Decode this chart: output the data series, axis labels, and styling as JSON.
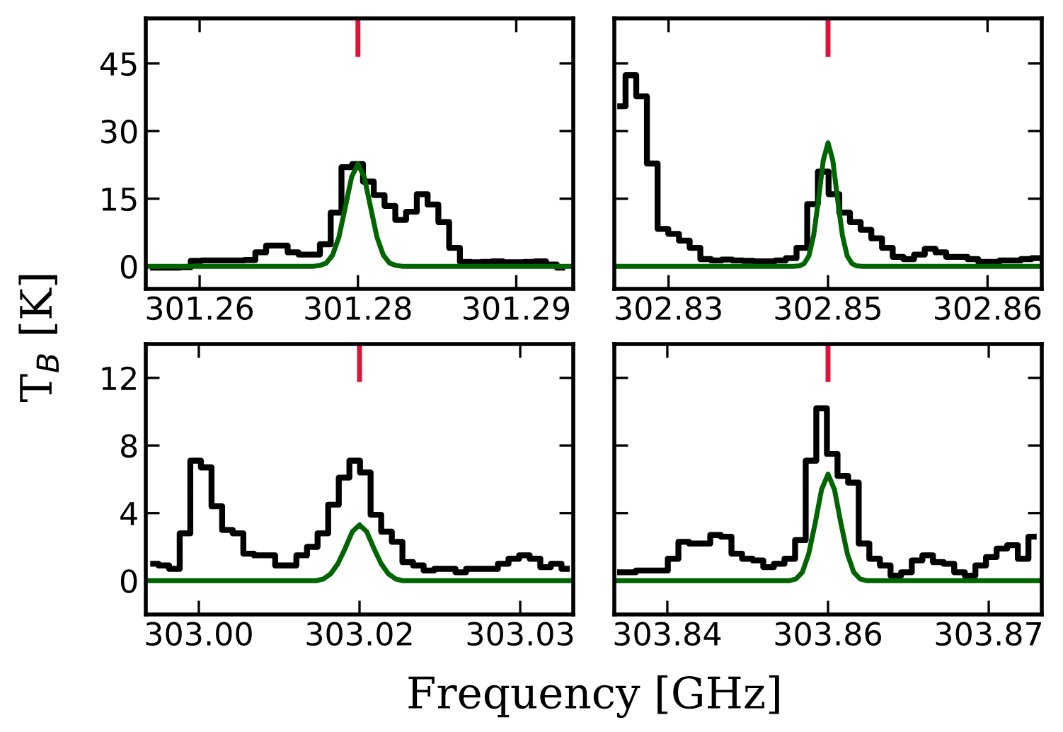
{
  "chart_data": [
    {
      "type": "step",
      "ylabel": "T$_{B}$ [K]",
      "xlim": [
        301.2616,
        301.2886
      ],
      "ylim": [
        -5,
        55
      ],
      "xticks": [
        {
          "value": 301.265,
          "label": "301.26"
        },
        {
          "value": 301.275,
          "label": "301.28"
        },
        {
          "value": 301.285,
          "label": "301.29"
        }
      ],
      "yticks": [
        0,
        15,
        30,
        45
      ],
      "grid": false,
      "legend": false,
      "series": [
        {
          "color": "#000000",
          "x": [
            301.26206,
            301.26274,
            301.26342,
            301.2641,
            301.26478,
            301.26546,
            301.26614,
            301.26682,
            301.2675,
            301.26818,
            301.26886,
            301.26954,
            301.27022,
            301.2709,
            301.27158,
            301.27226,
            301.27294,
            301.27362,
            301.2743,
            301.27498,
            301.27566,
            301.27634,
            301.27702,
            301.2777,
            301.27838,
            301.27906,
            301.27974,
            301.28042,
            301.2811,
            301.28178,
            301.28246,
            301.28314,
            301.28382,
            301.2845,
            301.28518,
            301.28586,
            301.28654,
            301.28722,
            301.2879
          ],
          "values": [
            -0.3,
            -0.3,
            -0.3,
            -0.2,
            1.2,
            1.3,
            1.3,
            1.3,
            1.3,
            1.4,
            3.1,
            4.6,
            4.6,
            3.1,
            2.6,
            2.6,
            4.9,
            11.9,
            22,
            22.7,
            18.8,
            15.8,
            13.4,
            10.3,
            12.1,
            16,
            13.7,
            9.8,
            4.1,
            1.0,
            0.9,
            1.0,
            1.1,
            0.9,
            0.9,
            1.0,
            1.1,
            0.4,
            -0.3
          ]
        },
        {
          "type": "line",
          "color": "#006400",
          "x": [
            301.2616,
            301.2722,
            301.2726,
            301.273,
            301.2734,
            301.2738,
            301.2742,
            301.2746,
            301.275,
            301.2754,
            301.2758,
            301.2762,
            301.2766,
            301.277,
            301.2774,
            301.2778,
            301.2886
          ],
          "values": [
            0,
            0,
            0.2,
            0.7,
            2.5,
            6.5,
            13.1,
            19.8,
            22.7,
            19.8,
            13.1,
            6.5,
            2.5,
            0.7,
            0.2,
            0,
            0
          ]
        },
        {
          "type": "line",
          "color": "#dc143c",
          "x": [
            301.275,
            301.275
          ],
          "values": [
            55,
            47
          ]
        }
      ]
    },
    {
      "type": "step",
      "xlim": [
        302.8316,
        302.8584
      ],
      "ylim": [
        -5,
        55
      ],
      "tick_labels": "x",
      "xticks": [
        {
          "value": 302.835,
          "label": "302.83"
        },
        {
          "value": 302.845,
          "label": "302.85"
        },
        {
          "value": 302.855,
          "label": "302.86"
        }
      ],
      "yticks": [
        {
          "value": 0,
          "label": null
        },
        {
          "value": 15,
          "label": null
        },
        {
          "value": 30,
          "label": null
        },
        {
          "value": 45,
          "label": null
        }
      ],
      "grid": false,
      "legend": false,
      "series": [
        {
          "color": "#000000",
          "x": [
            302.83197,
            302.83264,
            302.83331,
            302.83398,
            302.83465,
            302.83532,
            302.83599,
            302.83666,
            302.83733,
            302.838,
            302.83867,
            302.83934,
            302.84001,
            302.84068,
            302.84135,
            302.84202,
            302.84269,
            302.84336,
            302.84403,
            302.8447,
            302.84537,
            302.84604,
            302.84671,
            302.84738,
            302.84805,
            302.84872,
            302.84939,
            302.85006,
            302.85073,
            302.8514,
            302.85207,
            302.85274,
            302.85341,
            302.85408,
            302.85475,
            302.85542,
            302.85609,
            302.85676,
            302.85743,
            302.8581
          ],
          "values": [
            35.5,
            42.4,
            37.7,
            22.8,
            8.3,
            7.2,
            5.7,
            4.1,
            1.6,
            1.3,
            1.5,
            1.3,
            1.2,
            1.1,
            1.1,
            1.3,
            1.8,
            4.1,
            13.8,
            21,
            16,
            11.9,
            9.8,
            8.1,
            6.2,
            4.1,
            2.1,
            1.6,
            2.6,
            3.9,
            3.1,
            2.1,
            2.1,
            1.6,
            1.0,
            1.0,
            1.3,
            1.3,
            1.6,
            1.8
          ]
        },
        {
          "type": "line",
          "color": "#006400",
          "x": [
            302.8316,
            302.8429,
            302.8432,
            302.8435,
            302.8438,
            302.8441,
            302.8444,
            302.8447,
            302.845,
            302.8453,
            302.8456,
            302.8459,
            302.8462,
            302.8465,
            302.8468,
            302.8471,
            302.8584
          ],
          "values": [
            0,
            0,
            0.1,
            0.6,
            2.3,
            6.9,
            14.8,
            23.5,
            27.4,
            23.5,
            14.8,
            6.9,
            2.3,
            0.6,
            0.1,
            0,
            0
          ]
        },
        {
          "type": "line",
          "color": "#dc143c",
          "x": [
            302.845,
            302.845
          ],
          "values": [
            55,
            47
          ]
        }
      ]
    },
    {
      "type": "step",
      "xlabel": "Frequency [GHz]",
      "xlim": [
        303.0017,
        303.0283
      ],
      "ylim": [
        -2,
        14
      ],
      "xticks": [
        {
          "value": 303.005,
          "label": "303.00"
        },
        {
          "value": 303.015,
          "label": "303.02"
        },
        {
          "value": 303.025,
          "label": "303.03"
        }
      ],
      "yticks": [
        0,
        4,
        8,
        12
      ],
      "grid": false,
      "legend": false,
      "series": [
        {
          "color": "#000000",
          "x": [
            303.00216,
            303.00282,
            303.00348,
            303.00414,
            303.0048,
            303.00546,
            303.00612,
            303.00678,
            303.00744,
            303.0081,
            303.00876,
            303.00942,
            303.01008,
            303.01074,
            303.0114,
            303.01206,
            303.01272,
            303.01338,
            303.01404,
            303.0147,
            303.01536,
            303.01602,
            303.01668,
            303.01734,
            303.018,
            303.01866,
            303.01932,
            303.01998,
            303.02064,
            303.0213,
            303.02196,
            303.02262,
            303.02328,
            303.02394,
            303.0246,
            303.02526,
            303.02592,
            303.02658,
            303.02724,
            303.0279
          ],
          "values": [
            1.0,
            0.9,
            0.7,
            2.8,
            7.1,
            6.7,
            4.4,
            3.0,
            2.8,
            1.6,
            1.5,
            1.5,
            0.9,
            0.9,
            1.5,
            2.0,
            2.8,
            4.5,
            6.1,
            7.1,
            6.4,
            3.9,
            2.9,
            2.3,
            1.1,
            0.9,
            0.6,
            0.7,
            0.7,
            0.5,
            0.7,
            0.7,
            0.7,
            1.0,
            1.3,
            1.5,
            1.3,
            0.8,
            1.0,
            0.7
          ]
        },
        {
          "type": "line",
          "color": "#006400",
          "x": [
            303.0017,
            303.01185,
            303.0123,
            303.01275,
            303.0132,
            303.01365,
            303.0141,
            303.01455,
            303.015,
            303.01545,
            303.0159,
            303.01635,
            303.0168,
            303.01725,
            303.0177,
            303.01815,
            303.0283
          ],
          "values": [
            0,
            0,
            0,
            0.1,
            0.4,
            1.0,
            1.9,
            2.9,
            3.3,
            2.9,
            1.9,
            1.0,
            0.4,
            0.1,
            0,
            0,
            0
          ]
        },
        {
          "type": "line",
          "color": "#dc143c",
          "x": [
            303.015,
            303.015
          ],
          "values": [
            14,
            11.9
          ]
        }
      ]
    },
    {
      "type": "step",
      "xlim": [
        303.8417,
        303.8683
      ],
      "ylim": [
        -2,
        14
      ],
      "tick_labels": "x",
      "xticks": [
        {
          "value": 303.845,
          "label": "303.84"
        },
        {
          "value": 303.855,
          "label": "303.86"
        },
        {
          "value": 303.865,
          "label": "303.87"
        }
      ],
      "yticks": [
        {
          "value": 0,
          "label": null
        },
        {
          "value": 4,
          "label": null
        },
        {
          "value": 8,
          "label": null
        },
        {
          "value": 12,
          "label": null
        }
      ],
      "grid": false,
      "legend": false,
      "series": [
        {
          "color": "#000000",
          "x": [
            303.84206,
            303.84272,
            303.84338,
            303.84404,
            303.8447,
            303.84536,
            303.84602,
            303.84668,
            303.84734,
            303.848,
            303.84866,
            303.84932,
            303.84998,
            303.85064,
            303.8513,
            303.85196,
            303.85262,
            303.85328,
            303.85394,
            303.8546,
            303.85526,
            303.85592,
            303.85658,
            303.85724,
            303.8579,
            303.85856,
            303.85922,
            303.85988,
            303.86054,
            303.8612,
            303.86186,
            303.86252,
            303.86318,
            303.86384,
            303.8645,
            303.86516,
            303.86582,
            303.86648,
            303.86714,
            303.8678
          ],
          "values": [
            0.5,
            0.5,
            0.6,
            0.6,
            0.6,
            1.3,
            2.3,
            2.2,
            2.2,
            2.7,
            2.6,
            1.6,
            1.3,
            1.2,
            0.8,
            1.0,
            1.3,
            2.4,
            7.1,
            10.2,
            7.5,
            6.2,
            5.8,
            2.2,
            1.3,
            0.9,
            0.3,
            0.5,
            1.2,
            1.5,
            1.1,
            1.0,
            0.5,
            0.3,
            0.9,
            1.4,
            1.9,
            2.1,
            1.3,
            2.6
          ]
        },
        {
          "type": "line",
          "color": "#006400",
          "x": [
            303.8417,
            303.8522,
            303.8526,
            303.853,
            303.8534,
            303.8538,
            303.8542,
            303.8546,
            303.855,
            303.8554,
            303.8558,
            303.8562,
            303.8566,
            303.857,
            303.8574,
            303.8578,
            303.8683
          ],
          "values": [
            0,
            0,
            0,
            0.1,
            0.5,
            1.6,
            3.4,
            5.4,
            6.3,
            5.4,
            3.4,
            1.6,
            0.5,
            0.1,
            0,
            0,
            0
          ]
        },
        {
          "type": "line",
          "color": "#dc143c",
          "x": [
            303.855,
            303.855
          ],
          "values": [
            14,
            11.9
          ]
        }
      ]
    }
  ]
}
